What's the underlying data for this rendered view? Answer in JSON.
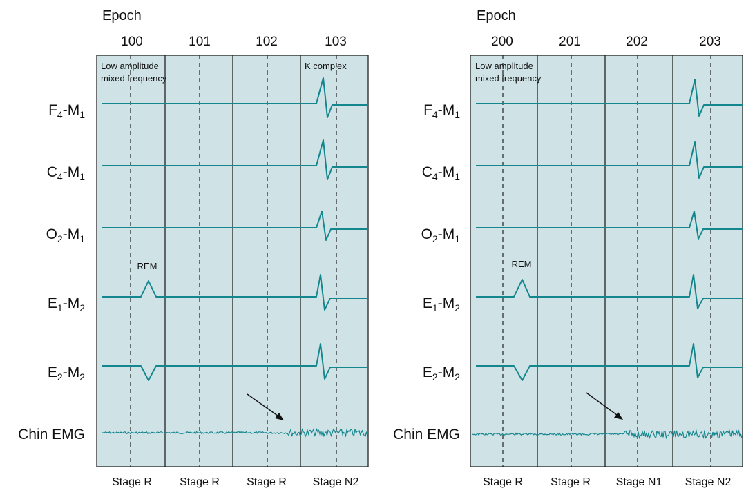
{
  "epoch_title": "Epoch",
  "annotation_low_amp_line1": "Low amplitude",
  "annotation_low_amp_line2": "mixed frequency",
  "annotation_rem": "REM",
  "annotation_k_complex": "K complex",
  "channels": [
    {
      "id": "f4m1",
      "base": "F",
      "sub1": "4",
      "mid": "-M",
      "sub2": "1"
    },
    {
      "id": "c4m1",
      "base": "C",
      "sub1": "4",
      "mid": "-M",
      "sub2": "1"
    },
    {
      "id": "o2m1",
      "base": "O",
      "sub1": "2",
      "mid": "-M",
      "sub2": "1"
    },
    {
      "id": "e1m2",
      "base": "E",
      "sub1": "1",
      "mid": "-M",
      "sub2": "2"
    },
    {
      "id": "e2m2",
      "base": "E",
      "sub1": "2",
      "mid": "-M",
      "sub2": "2"
    },
    {
      "id": "chin",
      "label": "Chin EMG"
    }
  ],
  "panels": [
    {
      "id": "left",
      "epochs": [
        "100",
        "101",
        "102",
        "103"
      ],
      "stages": [
        "Stage R",
        "Stage R",
        "Stage R",
        "Stage N2"
      ],
      "show_k_complex_label": true
    },
    {
      "id": "right",
      "epochs": [
        "200",
        "201",
        "202",
        "203"
      ],
      "stages": [
        "Stage R",
        "Stage R",
        "Stage N1",
        "Stage N2"
      ],
      "show_k_complex_label": false
    }
  ],
  "colors": {
    "panel_fill": "#cfe3e6",
    "trace": "#14868e",
    "border": "#222222"
  }
}
